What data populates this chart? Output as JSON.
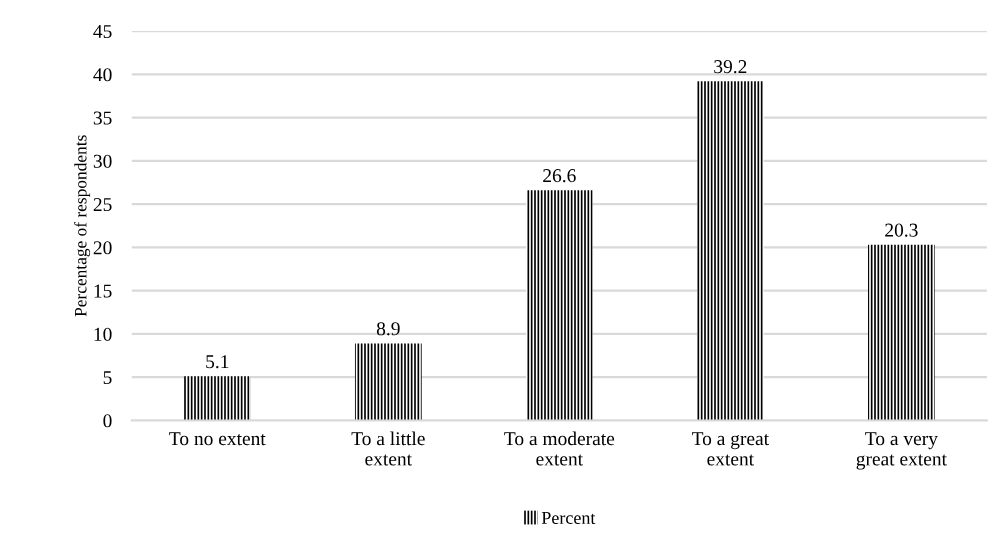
{
  "chart_data": {
    "type": "bar",
    "ylabel": "Percentage of respondents",
    "categories": [
      "To no extent",
      "To a little\nextent",
      "To a moderate\nextent",
      "To a great\nextent",
      "To a very\ngreat extent"
    ],
    "series": [
      {
        "name": "Percent",
        "color": "#000000",
        "values": [
          5.1,
          8.9,
          26.6,
          39.2,
          20.3
        ]
      }
    ],
    "ylim": [
      0,
      45
    ],
    "yticks": [
      0,
      5,
      10,
      15,
      20,
      25,
      30,
      35,
      40,
      45
    ],
    "grid": "y",
    "legend": "bottom",
    "data_labels": true
  }
}
